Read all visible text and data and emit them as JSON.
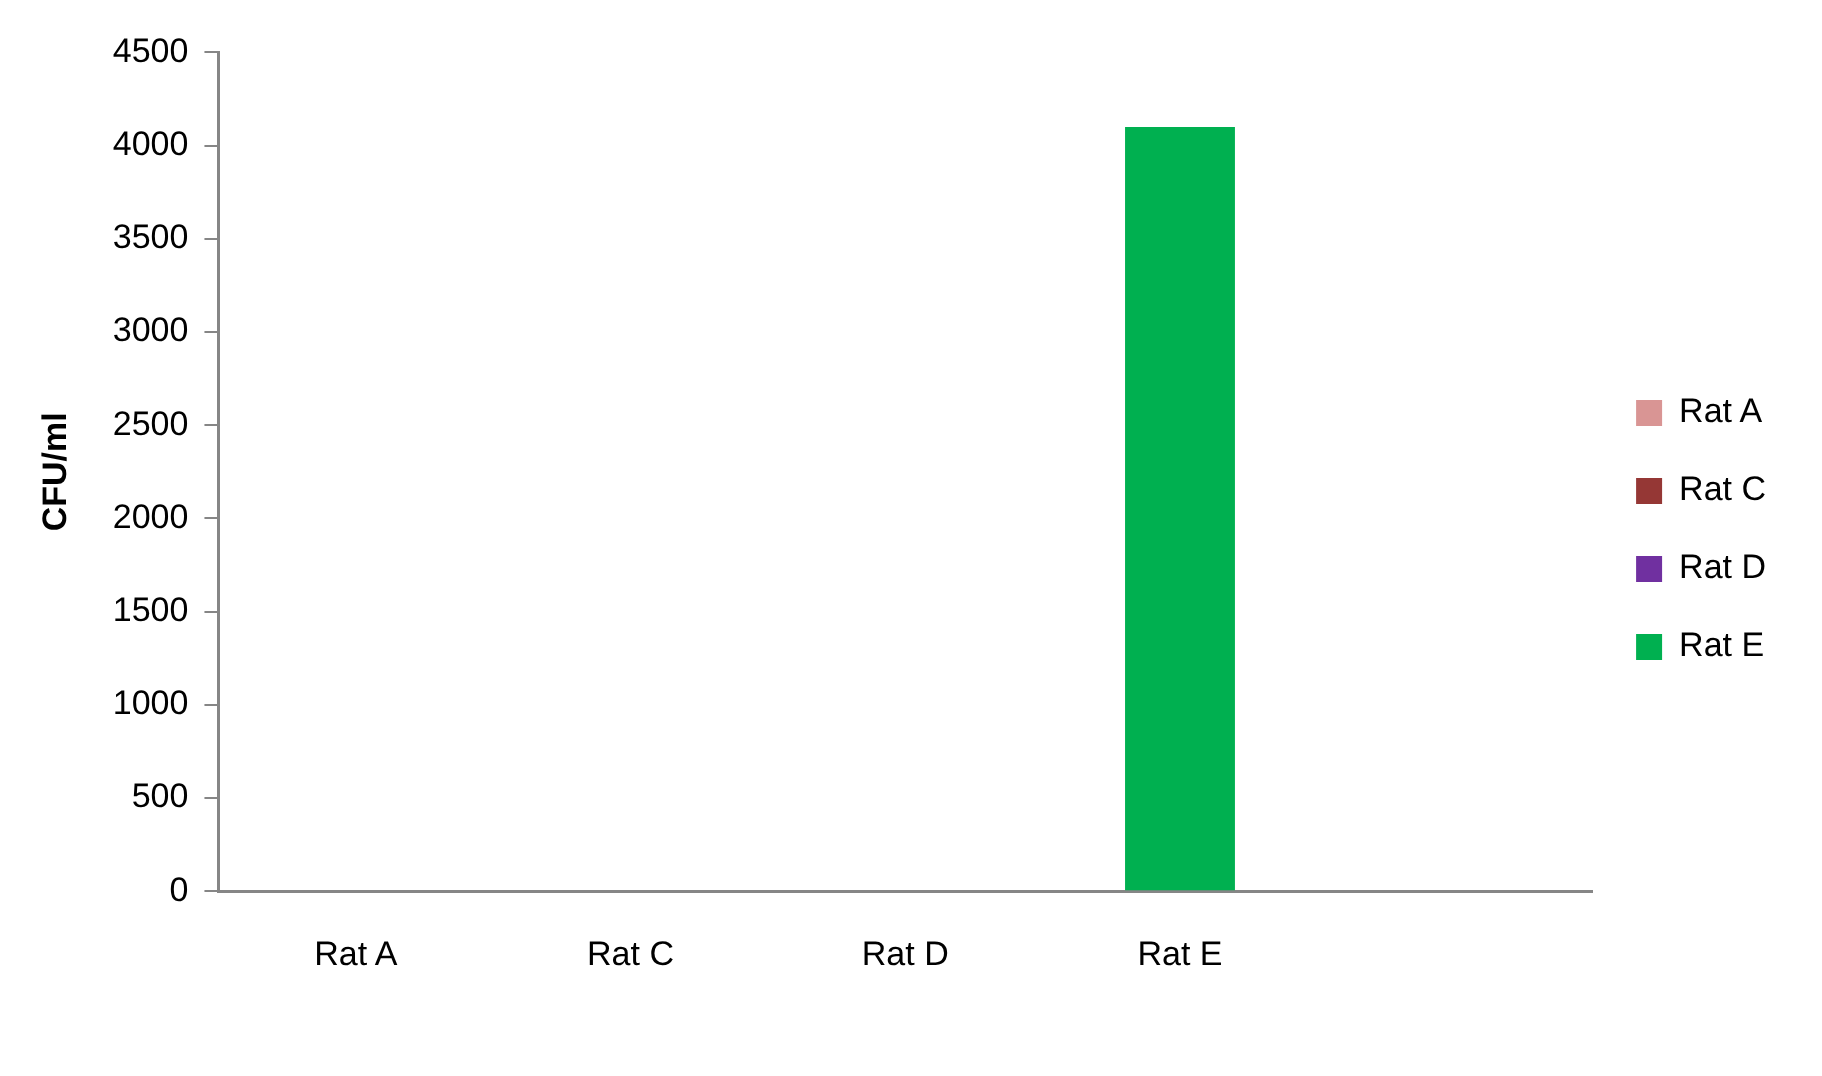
{
  "chart_data": {
    "type": "bar",
    "ylabel": "CFU/ml",
    "categories": [
      "Rat A",
      "Rat C",
      "Rat D",
      "Rat E",
      null
    ],
    "series": [
      {
        "name": "Rat A",
        "color": "#d99594",
        "values": [
          0,
          null,
          null,
          null,
          null
        ]
      },
      {
        "name": "Rat C",
        "color": "#953735",
        "values": [
          null,
          0,
          null,
          null,
          null
        ]
      },
      {
        "name": "Rat D",
        "color": "#7030a0",
        "values": [
          null,
          null,
          0,
          null,
          null
        ]
      },
      {
        "name": "Rat E",
        "color": "#00b050",
        "values": [
          null,
          null,
          null,
          4100,
          null
        ]
      }
    ],
    "ylim": [
      0,
      4500
    ],
    "yticks": [
      0,
      500,
      1000,
      1500,
      2000,
      2500,
      3000,
      3500,
      4000,
      4500
    ],
    "grid": false,
    "legend": "right"
  }
}
